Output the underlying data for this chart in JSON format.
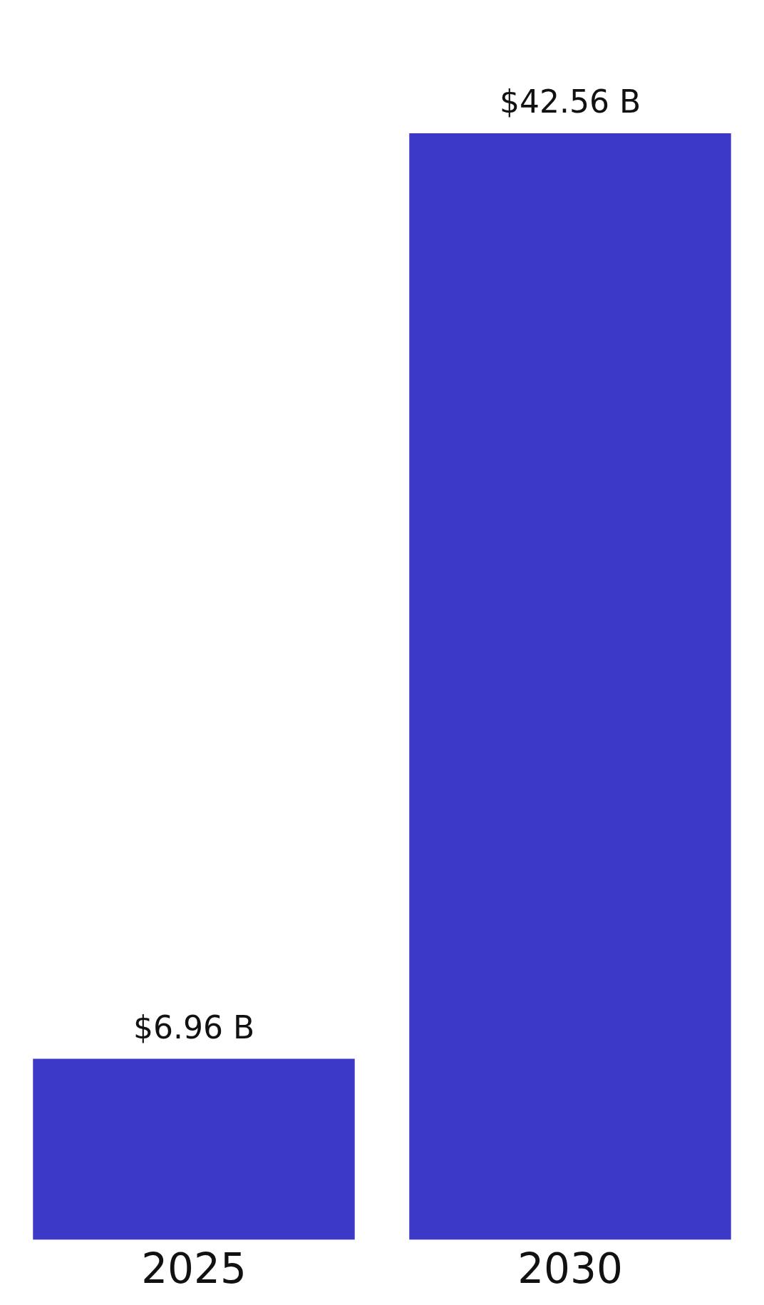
{
  "chart_data": {
    "type": "bar",
    "categories": [
      "2025",
      "2030"
    ],
    "values": [
      6.96,
      42.56
    ],
    "value_labels": [
      "$6.96 B",
      "$42.56 B"
    ],
    "color": "#3c39c9",
    "grid": false,
    "legend": false
  }
}
